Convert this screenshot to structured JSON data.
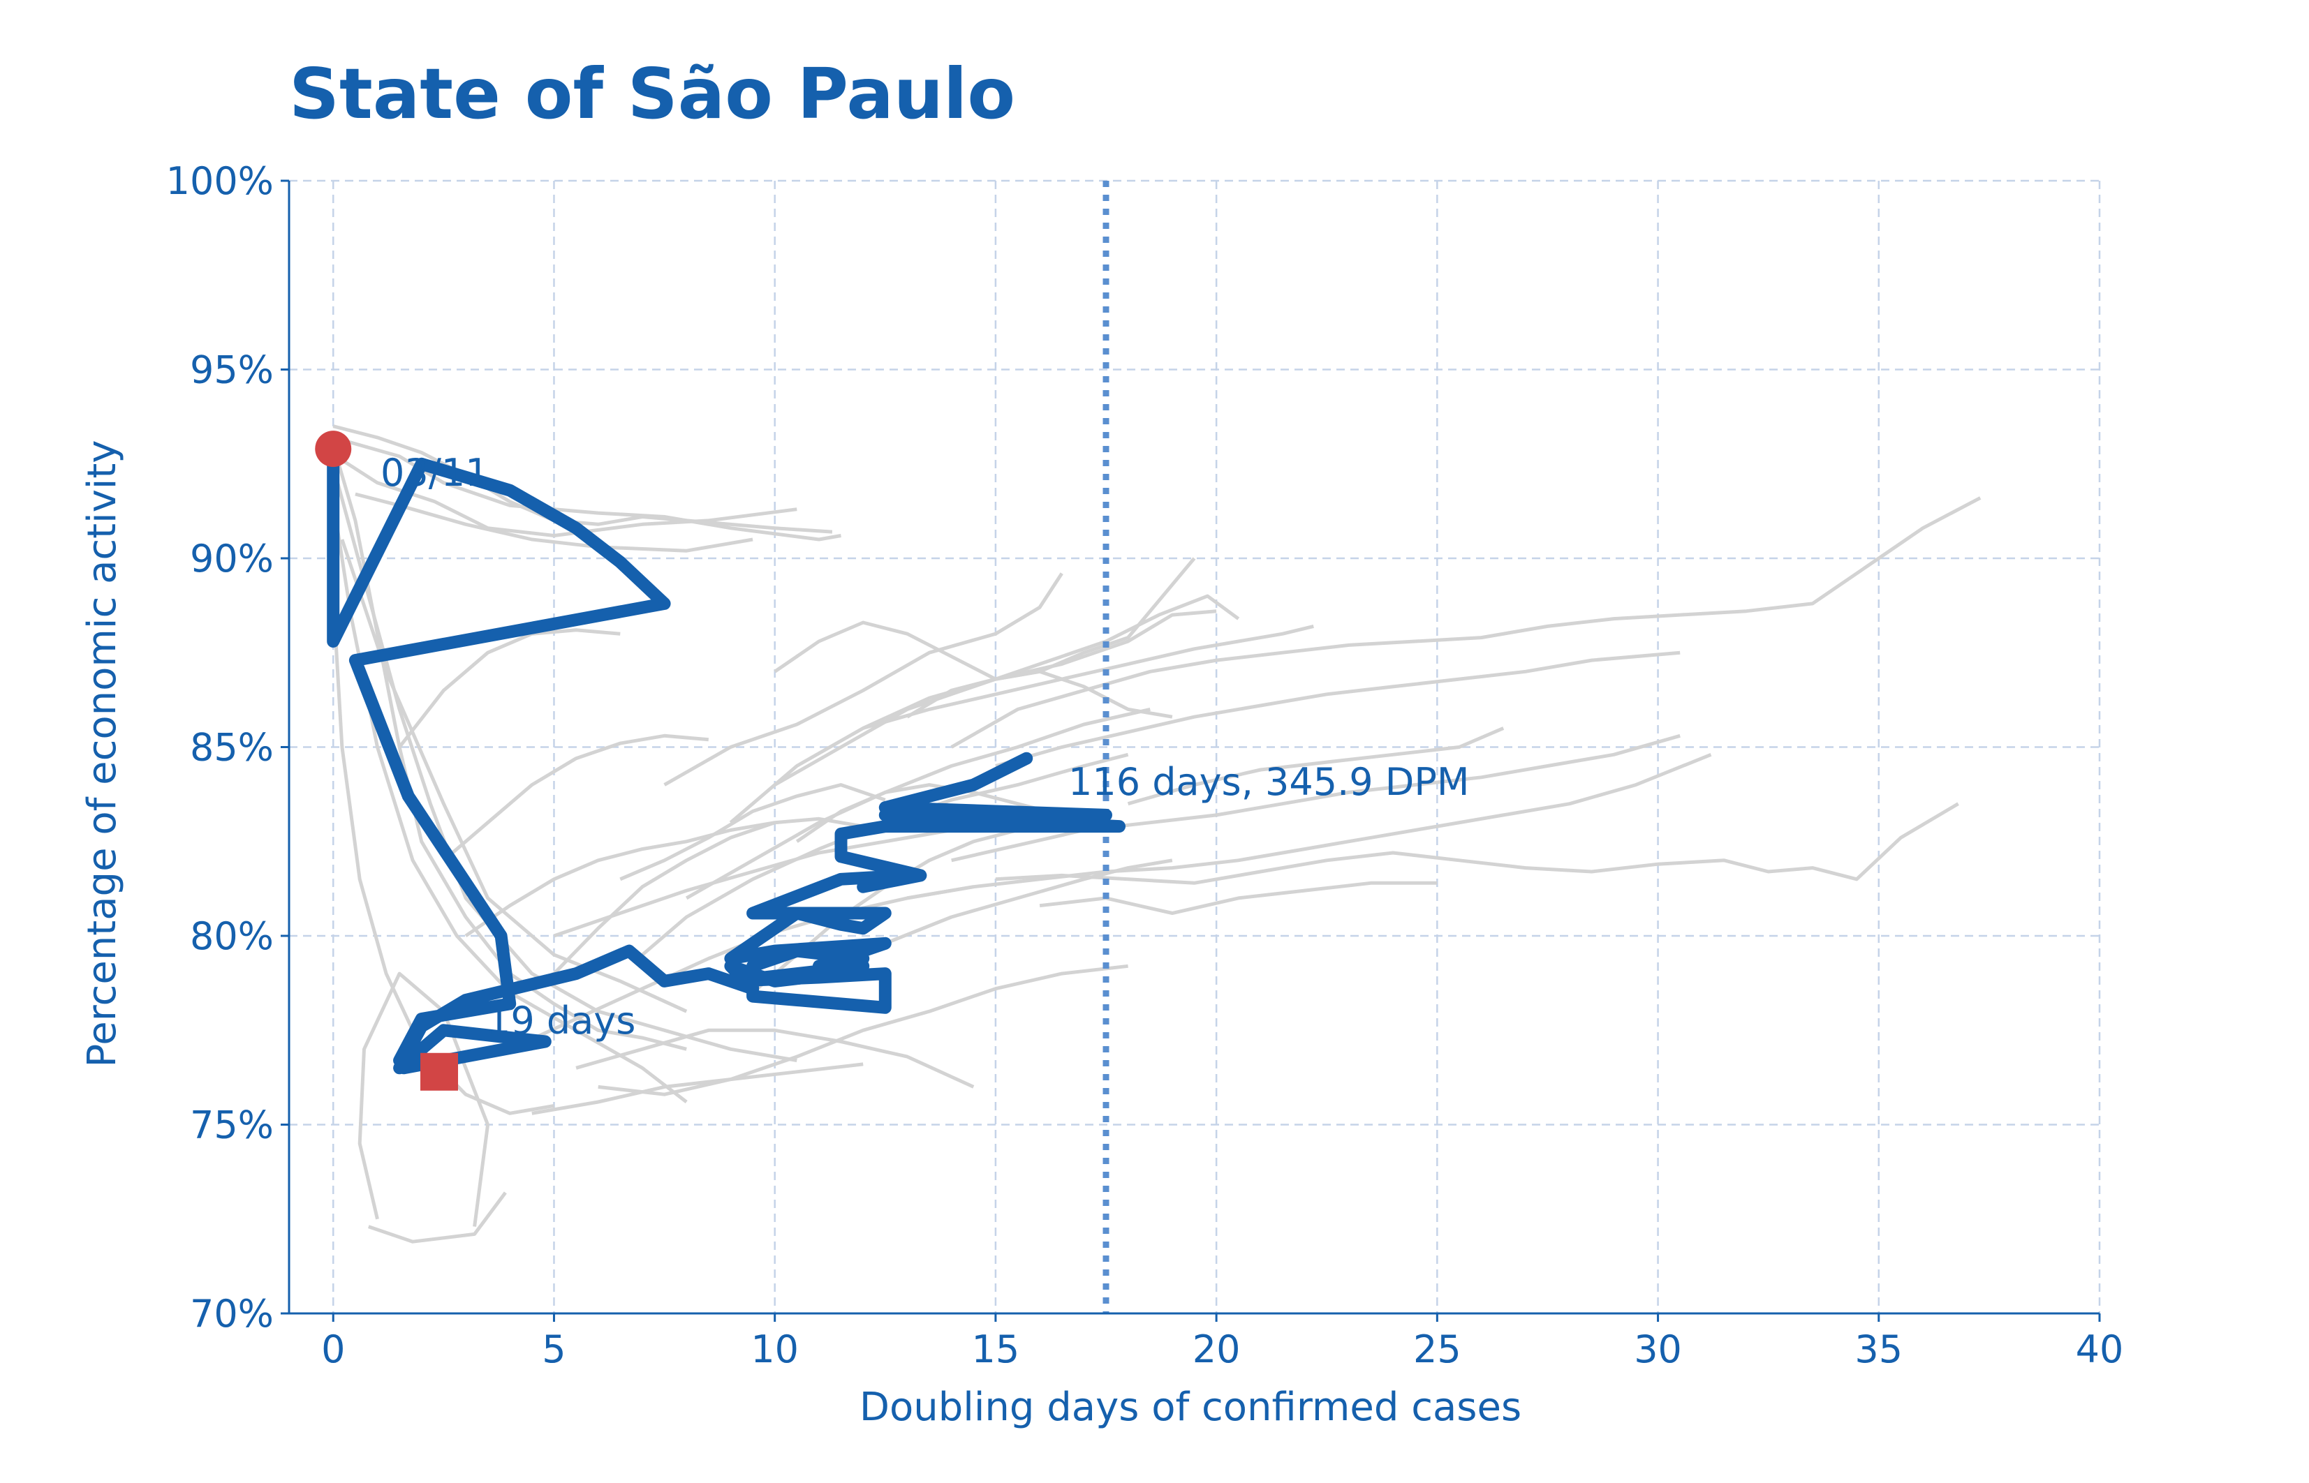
{
  "colors": {
    "accent": "#1560ad",
    "background_series": "#d3d3d3",
    "marker": "#d24545",
    "reference_line": "#5a8fd0",
    "grid": "#c5d3e8"
  },
  "chart_data": {
    "type": "line",
    "title": "State of São Paulo",
    "xlabel": "Doubling days of confirmed cases",
    "ylabel": "Percentage of economic activity",
    "xlim": [
      -1,
      40
    ],
    "ylim": [
      70,
      100
    ],
    "xticks": [
      0,
      5,
      10,
      15,
      20,
      25,
      30,
      35,
      40
    ],
    "xtick_labels": [
      "0",
      "5",
      "10",
      "15",
      "20",
      "25",
      "30",
      "35",
      "40"
    ],
    "yticks": [
      70,
      75,
      80,
      85,
      90,
      95,
      100
    ],
    "ytick_labels": [
      "70%",
      "75%",
      "80%",
      "85%",
      "90%",
      "95%",
      "100%"
    ],
    "grid": true,
    "reference_line": {
      "orientation": "vertical",
      "x": 17.5,
      "style": "dotted"
    },
    "main_series": {
      "x": [
        0,
        0,
        2,
        4,
        5.5,
        6.5,
        7.5,
        0.5,
        1.7,
        3.8,
        4,
        2,
        1.5,
        1.6,
        4.8,
        2.5,
        1.5,
        2,
        3,
        5.5,
        6.7,
        7.5,
        8.5,
        9.5,
        9,
        10,
        11.5,
        12,
        9,
        11,
        12.5,
        12.5,
        9.5,
        9.5,
        10.5,
        12,
        11,
        12.5,
        10,
        9,
        10.5,
        12.5,
        12,
        11.5,
        10.5,
        9.5,
        11.5,
        13,
        12,
        13.3,
        11.5,
        11.5,
        12.5,
        17.8,
        12.5,
        17.5,
        12.5,
        14.5,
        15.7
      ],
      "y": [
        92.9,
        87.8,
        92.5,
        91.8,
        90.8,
        89.9,
        88.8,
        87.3,
        83.7,
        80.0,
        78.2,
        77.8,
        76.7,
        76.5,
        77.2,
        77.5,
        76.5,
        77.6,
        78.3,
        79.0,
        79.6,
        78.8,
        79.0,
        78.6,
        79.2,
        78.8,
        79.0,
        79.2,
        78.8,
        78.9,
        79.0,
        78.1,
        78.4,
        79.2,
        79.6,
        79.4,
        79.2,
        79.8,
        79.6,
        79.4,
        80.6,
        80.6,
        80.2,
        80.3,
        80.6,
        80.6,
        81.5,
        81.6,
        81.3,
        81.6,
        82.1,
        82.7,
        82.9,
        82.9,
        83.2,
        83.2,
        83.4,
        84.0,
        84.7
      ],
      "start": {
        "x": 0,
        "y": 92.9,
        "marker": "circle"
      },
      "end": {
        "x": 2.4,
        "y": 76.4,
        "marker": "square"
      }
    },
    "background_series": [
      {
        "x": [
          0,
          1,
          2,
          3,
          4,
          5,
          6,
          7,
          8,
          10,
          11.3
        ],
        "y": [
          93.5,
          93.2,
          92.8,
          92.2,
          91.5,
          91.0,
          90.9,
          91.1,
          91.0,
          90.8,
          90.7
        ]
      },
      {
        "x": [
          0.3,
          1.5,
          2.5,
          4,
          6,
          7.5,
          9,
          11,
          11.5
        ],
        "y": [
          93.1,
          92.7,
          92.0,
          91.4,
          91.2,
          91.1,
          90.8,
          90.5,
          90.6
        ]
      },
      {
        "x": [
          0.2,
          1,
          2.3,
          3.5,
          5,
          7,
          8.5,
          10.5
        ],
        "y": [
          92.6,
          92.0,
          91.5,
          90.8,
          90.6,
          90.9,
          91.0,
          91.3
        ]
      },
      {
        "x": [
          0.5,
          1.5,
          3,
          4.5,
          6,
          8,
          9.5
        ],
        "y": [
          91.7,
          91.4,
          90.9,
          90.5,
          90.3,
          90.2,
          90.5
        ]
      },
      {
        "x": [
          0,
          0.5,
          1,
          1.5,
          2,
          3,
          4,
          5,
          6,
          7,
          8
        ],
        "y": [
          93.0,
          91.0,
          88.0,
          85.0,
          82.5,
          80.5,
          79.0,
          78.2,
          77.5,
          77.3,
          77.0
        ]
      },
      {
        "x": [
          0.1,
          0.8,
          1.5,
          2.2,
          3,
          4.5,
          6,
          7.5,
          9,
          10.5
        ],
        "y": [
          92.0,
          89.0,
          86.0,
          83.5,
          81.0,
          79.0,
          78.0,
          77.5,
          77.0,
          76.7
        ]
      },
      {
        "x": [
          0,
          0.4,
          1,
          1.8,
          2.8,
          4,
          5.5,
          7,
          8
        ],
        "y": [
          91.5,
          88.5,
          85.0,
          82.0,
          80.0,
          78.5,
          77.5,
          76.5,
          75.6
        ]
      },
      {
        "x": [
          0.2,
          1.2,
          2.5,
          3.5,
          5,
          6.5,
          8
        ],
        "y": [
          90.5,
          87.0,
          83.5,
          81.0,
          79.5,
          78.8,
          78.0
        ]
      },
      {
        "x": [
          0,
          0.2,
          0.6,
          1.2,
          2,
          3,
          4,
          5
        ],
        "y": [
          89.0,
          85.0,
          81.5,
          79.0,
          77.0,
          75.8,
          75.3,
          75.5
        ]
      },
      {
        "x": [
          1,
          0.6,
          0.7,
          1.5,
          2.5,
          3.5,
          3.2
        ],
        "y": [
          72.5,
          74.5,
          77.0,
          79.0,
          78.0,
          75.0,
          72.3
        ]
      },
      {
        "x": [
          0.8,
          1.8,
          3.2,
          3.9
        ],
        "y": [
          72.3,
          71.9,
          72.1,
          73.2
        ]
      },
      {
        "x": [
          4,
          5,
          6,
          7,
          8,
          9,
          10,
          11,
          12
        ],
        "y": [
          78.5,
          79.0,
          80.2,
          81.3,
          82.0,
          82.6,
          83.0,
          83.1,
          82.9
        ]
      },
      {
        "x": [
          4,
          5.5,
          7,
          8.5,
          10,
          11.5,
          13,
          14.5
        ],
        "y": [
          77.0,
          77.8,
          78.6,
          79.4,
          80.1,
          80.6,
          81.0,
          81.3
        ]
      },
      {
        "x": [
          5,
          6.5,
          8,
          9.5,
          11,
          12.5,
          14,
          15.5,
          16.5
        ],
        "y": [
          80.0,
          80.6,
          81.2,
          81.7,
          82.2,
          82.5,
          82.8,
          83.0,
          83.0
        ]
      },
      {
        "x": [
          7,
          8,
          9.5,
          11,
          12.5,
          14,
          15.5,
          17,
          18
        ],
        "y": [
          79.5,
          80.5,
          81.5,
          82.3,
          83.0,
          83.6,
          84.0,
          84.5,
          84.8
        ]
      },
      {
        "x": [
          8,
          9.5,
          11,
          12.5,
          14,
          15.5,
          17,
          18.5
        ],
        "y": [
          81.0,
          82.0,
          83.0,
          83.8,
          84.5,
          85.0,
          85.6,
          86.0
        ]
      },
      {
        "x": [
          9,
          10.5,
          12,
          13.5,
          15,
          16.5,
          18,
          19,
          20
        ],
        "y": [
          83.0,
          84.5,
          85.5,
          86.3,
          86.8,
          87.2,
          87.8,
          88.5,
          88.6
        ]
      },
      {
        "x": [
          10,
          11.5,
          13,
          14.5,
          16,
          17.5,
          18.7,
          19.8,
          20.5
        ],
        "y": [
          84.0,
          85.0,
          86.0,
          86.6,
          87.2,
          87.8,
          88.5,
          89.0,
          88.4
        ]
      },
      {
        "x": [
          7.5,
          9,
          10.5,
          12,
          13.5,
          15,
          16,
          16.5
        ],
        "y": [
          84.0,
          85.0,
          85.6,
          86.5,
          87.5,
          88.0,
          88.7,
          89.6
        ]
      },
      {
        "x": [
          12,
          13.5,
          15,
          16.5,
          18,
          19.5,
          20.5,
          21.5,
          22.2
        ],
        "y": [
          85.5,
          86.0,
          86.4,
          86.8,
          87.2,
          87.6,
          87.8,
          88.0,
          88.2
        ]
      },
      {
        "x": [
          10,
          11,
          12,
          13,
          14,
          15,
          16,
          17,
          18,
          19.5
        ],
        "y": [
          87.0,
          87.8,
          88.3,
          88.0,
          87.4,
          86.8,
          87.0,
          87.5,
          87.9,
          90.0
        ]
      },
      {
        "x": [
          9.5,
          10.5,
          11.5,
          12.5,
          13.5,
          14.5,
          15.5
        ],
        "y": [
          78.5,
          79.5,
          80.5,
          81.3,
          82.0,
          82.5,
          82.8
        ]
      },
      {
        "x": [
          5.5,
          7,
          8.5,
          10,
          11.5,
          13,
          14.5
        ],
        "y": [
          76.5,
          77.0,
          77.5,
          77.5,
          77.2,
          76.8,
          76.0
        ]
      },
      {
        "x": [
          6,
          7.5,
          9,
          10.5,
          12,
          13.5,
          15,
          16.5,
          18
        ],
        "y": [
          76.0,
          75.8,
          76.2,
          76.8,
          77.5,
          78.0,
          78.6,
          79.0,
          79.2
        ]
      },
      {
        "x": [
          4.5,
          6,
          7.5,
          9,
          10.5,
          12
        ],
        "y": [
          75.3,
          75.6,
          76.0,
          76.2,
          76.4,
          76.6
        ]
      },
      {
        "x": [
          14,
          15.5,
          17,
          18.5,
          20,
          21.5,
          23,
          24.5,
          26,
          27.5,
          29,
          30.5,
          32,
          33.5,
          35,
          36,
          37.3
        ],
        "y": [
          85.0,
          86.0,
          86.5,
          87.0,
          87.3,
          87.5,
          87.7,
          87.8,
          87.9,
          88.2,
          88.4,
          88.5,
          88.6,
          88.8,
          90.0,
          90.8,
          91.6
        ]
      },
      {
        "x": [
          15,
          16.5,
          18,
          19.5,
          21,
          22.5,
          24,
          25.5,
          27,
          28.5,
          30.5
        ],
        "y": [
          84.5,
          85.0,
          85.4,
          85.8,
          86.1,
          86.4,
          86.6,
          86.8,
          87.0,
          87.3,
          87.5
        ]
      },
      {
        "x": [
          14,
          15.5,
          17,
          18.5,
          20,
          21.5,
          23,
          24.5,
          26,
          27.5,
          29,
          30.5
        ],
        "y": [
          82.0,
          82.4,
          82.8,
          83.0,
          83.2,
          83.5,
          83.8,
          84.0,
          84.2,
          84.5,
          84.8,
          85.3
        ]
      },
      {
        "x": [
          13,
          14.5,
          16,
          17.5,
          19,
          20.5,
          22,
          23.5,
          25,
          26.5,
          28,
          29.5,
          31.2
        ],
        "y": [
          81.0,
          81.3,
          81.5,
          81.7,
          81.8,
          82.0,
          82.3,
          82.6,
          82.9,
          83.2,
          83.5,
          84.0,
          84.8
        ]
      },
      {
        "x": [
          15,
          16.5,
          18,
          19.5,
          21,
          22.5,
          24,
          25.5,
          27,
          28.5,
          30,
          31.5,
          32.5,
          33.5,
          34.5,
          35.5,
          36.8
        ],
        "y": [
          81.5,
          81.6,
          81.5,
          81.4,
          81.7,
          82.0,
          82.2,
          82.0,
          81.8,
          81.7,
          81.9,
          82.0,
          81.7,
          81.8,
          81.5,
          82.6,
          83.5
        ]
      },
      {
        "x": [
          16,
          17.5,
          19,
          20.5,
          22,
          23.5,
          25
        ],
        "y": [
          80.8,
          81.0,
          80.6,
          81.0,
          81.2,
          81.4,
          81.4
        ]
      },
      {
        "x": [
          18,
          19.5,
          21,
          22.5,
          24,
          25.5,
          26.5
        ],
        "y": [
          83.5,
          84.0,
          84.4,
          84.6,
          84.8,
          85.0,
          85.5
        ]
      },
      {
        "x": [
          11,
          12.5,
          14,
          15.5,
          17,
          18,
          19
        ],
        "y": [
          79.0,
          79.8,
          80.5,
          81.0,
          81.5,
          81.8,
          82.0
        ]
      },
      {
        "x": [
          10.5,
          11.5,
          12.5,
          13.5,
          14.5,
          15.5,
          16.5,
          17.5
        ],
        "y": [
          82.5,
          83.3,
          83.8,
          84.0,
          83.8,
          83.5,
          83.2,
          83.0
        ]
      },
      {
        "x": [
          13,
          14,
          15,
          16,
          17,
          18,
          19
        ],
        "y": [
          85.8,
          86.5,
          86.8,
          87.0,
          86.6,
          86.0,
          85.8
        ]
      },
      {
        "x": [
          6.5,
          7.5,
          8.5,
          9.5,
          10.5,
          11.5,
          12.5
        ],
        "y": [
          81.5,
          82.0,
          82.6,
          83.3,
          83.7,
          84.0,
          83.6
        ]
      },
      {
        "x": [
          3,
          4,
          5,
          6,
          7,
          8,
          9,
          10
        ],
        "y": [
          80.0,
          80.8,
          81.5,
          82.0,
          82.3,
          82.5,
          82.8,
          83.0
        ]
      },
      {
        "x": [
          2.5,
          3.5,
          4.5,
          5.5,
          6.5,
          7.5,
          8.5
        ],
        "y": [
          82.0,
          83.0,
          84.0,
          84.7,
          85.1,
          85.3,
          85.2
        ]
      },
      {
        "x": [
          1.5,
          2.5,
          3.5,
          4.5,
          5.5,
          6.5
        ],
        "y": [
          85.0,
          86.5,
          87.5,
          88.0,
          88.1,
          88.0
        ]
      }
    ]
  },
  "annotations": {
    "start_label": "03/11",
    "end_label": "19 days",
    "current_label": "116 days, 345.9 DPM"
  }
}
